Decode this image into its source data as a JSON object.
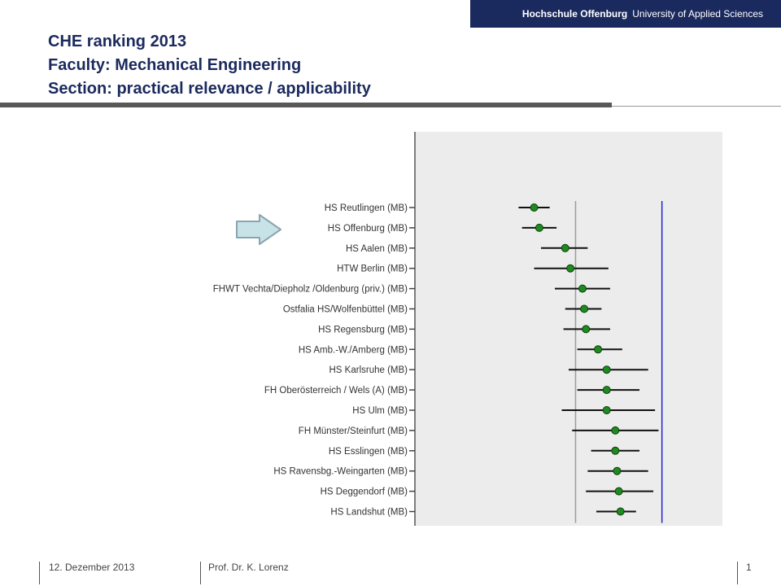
{
  "brand": {
    "name": "Hochschule Offenburg",
    "tagline": "University of Applied Sciences"
  },
  "title": {
    "line1": "CHE ranking 2013",
    "line2": "Faculty: Mechanical Engineering",
    "line3": "Section: practical relevance / applicability"
  },
  "footer": {
    "date": "12. Dezember 2013",
    "author": "Prof. Dr. K. Lorenz",
    "page": "1"
  },
  "colors": {
    "brand": "#1b2a5e",
    "point": "#1f8a1f",
    "reference_line": "#2323d6",
    "mean_line": "#9a9a9a",
    "plot_bg": "#ececec",
    "arrow": "#c7e3e8"
  },
  "highlight_icon": "right-arrow-icon",
  "highlighted_category": "HS Offenburg (MB)",
  "chart_data": {
    "type": "scatter",
    "variant": "forest-plot (point estimate with interval)",
    "orientation": "horizontal",
    "categories": [
      "HS Reutlingen (MB)",
      "HS Offenburg (MB)",
      "HS Aalen (MB)",
      "HTW Berlin (MB)",
      "FHWT Vechta/Diepholz /Oldenburg (priv.) (MB)",
      "Ostfalia HS/Wolfenbüttel (MB)",
      "HS Regensburg (MB)",
      "HS Amb.-W./Amberg (MB)",
      "HS Karlsruhe (MB)",
      "FH Oberösterreich / Wels (A) (MB)",
      "HS Ulm (MB)",
      "FH Münster/Steinfurt (MB)",
      "HS Esslingen (MB)",
      "HS Ravensbg.-Weingarten (MB)",
      "HS Deggendorf (MB)",
      "HS Landshut (MB)"
    ],
    "series": [
      {
        "values": [
          0.38,
          0.41,
          0.56,
          0.59,
          0.66,
          0.67,
          0.68,
          0.75,
          0.8,
          0.8,
          0.8,
          0.85,
          0.85,
          0.86,
          0.87,
          0.88
        ],
        "lower": [
          0.29,
          0.31,
          0.42,
          0.38,
          0.5,
          0.56,
          0.55,
          0.63,
          0.58,
          0.63,
          0.54,
          0.6,
          0.71,
          0.69,
          0.68,
          0.74
        ],
        "upper": [
          0.47,
          0.51,
          0.69,
          0.81,
          0.82,
          0.77,
          0.82,
          0.89,
          1.04,
          0.99,
          1.08,
          1.1,
          0.99,
          1.04,
          1.07,
          0.97
        ]
      }
    ],
    "reference_lines": [
      {
        "x": 0.62,
        "style": "gray"
      },
      {
        "x": 1.12,
        "style": "blue"
      }
    ],
    "xlim": [
      -0.31,
      1.47
    ],
    "grid": false,
    "legend": "none",
    "title": "",
    "xlabel": "",
    "ylabel": ""
  }
}
